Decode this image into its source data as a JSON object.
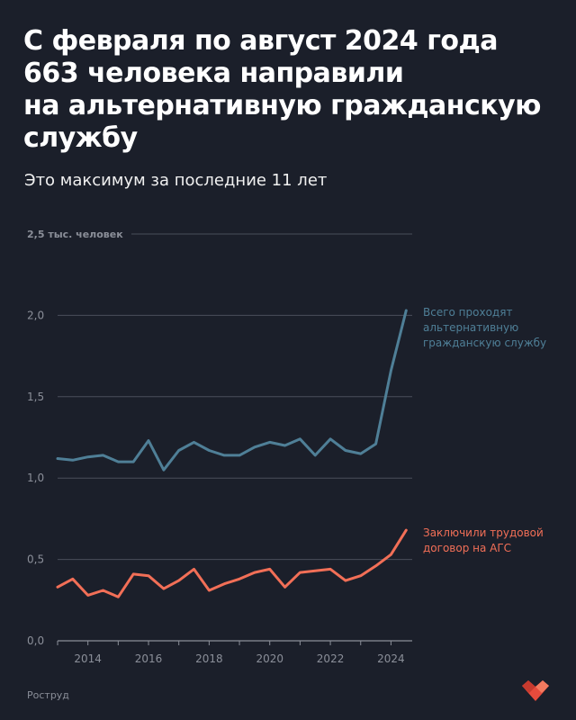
{
  "title_lines": [
    "С февраля по август 2024 года",
    "663 человека направили",
    "на альтернативную гражданскую",
    "службу"
  ],
  "subtitle": "Это максимум за последние 11 лет",
  "source": "Роструд",
  "logo_icon": "red-heart-logo-icon",
  "colors": {
    "background": "#1b1f2a",
    "grid": "#4a4f5a",
    "axis_text": "#8b8f99",
    "series_total": "#4f7f97",
    "series_contract": "#f26f57"
  },
  "chart_data": {
    "type": "line",
    "title": "",
    "xlabel": "",
    "ylabel": "",
    "unit_label": "2,5 тыс. человек",
    "ylim": [
      0,
      2.5
    ],
    "xlim": [
      2013,
      2024.7
    ],
    "y_ticks": [
      0,
      0.5,
      1.0,
      1.5,
      2.0
    ],
    "y_tick_labels": [
      "0,0",
      "0,5",
      "1,0",
      "1,5",
      "2,0"
    ],
    "x_ticks": [
      2014,
      2016,
      2018,
      2020,
      2022,
      2024
    ],
    "x_tick_labels": [
      "2014",
      "2016",
      "2018",
      "2020",
      "2022",
      "2024"
    ],
    "grid": true,
    "series": [
      {
        "name": "Всего проходят альтернативную гражданскую службу",
        "label_lines": [
          "Всего проходят",
          "альтернативную",
          "гражданскую службу"
        ],
        "color": "#4f7f97",
        "x": [
          2013.0,
          2013.5,
          2014.0,
          2014.5,
          2015.0,
          2015.5,
          2016.0,
          2016.5,
          2017.0,
          2017.5,
          2018.0,
          2018.5,
          2019.0,
          2019.5,
          2020.0,
          2020.5,
          2021.0,
          2021.5,
          2022.0,
          2022.5,
          2023.0,
          2023.5,
          2024.0,
          2024.5
        ],
        "y": [
          1.12,
          1.11,
          1.13,
          1.14,
          1.1,
          1.1,
          1.23,
          1.05,
          1.17,
          1.22,
          1.17,
          1.14,
          1.14,
          1.19,
          1.22,
          1.2,
          1.24,
          1.14,
          1.24,
          1.17,
          1.15,
          1.21,
          1.66,
          2.03
        ]
      },
      {
        "name": "Заключили трудовой договор на АГС",
        "label_lines": [
          "Заключили трудовой",
          "договор на АГС"
        ],
        "color": "#f26f57",
        "x": [
          2013.0,
          2013.5,
          2014.0,
          2014.5,
          2015.0,
          2015.5,
          2016.0,
          2016.5,
          2017.0,
          2017.5,
          2018.0,
          2018.5,
          2019.0,
          2019.5,
          2020.0,
          2020.5,
          2021.0,
          2021.5,
          2022.0,
          2022.5,
          2023.0,
          2023.5,
          2024.0,
          2024.5
        ],
        "y": [
          0.33,
          0.38,
          0.28,
          0.31,
          0.27,
          0.41,
          0.4,
          0.32,
          0.37,
          0.44,
          0.31,
          0.35,
          0.38,
          0.42,
          0.44,
          0.33,
          0.42,
          0.43,
          0.44,
          0.37,
          0.4,
          0.46,
          0.53,
          0.68
        ]
      }
    ]
  }
}
